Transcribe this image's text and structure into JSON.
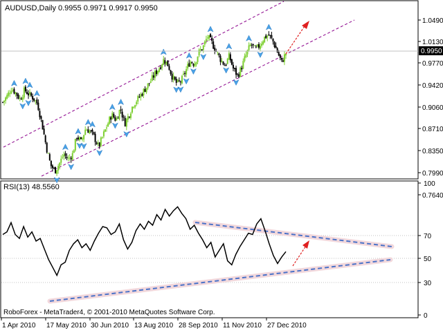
{
  "price_panel": {
    "symbol_line": "AUDUSD,Daily  0.9955 0.9971 0.9917 0.9950",
    "y_ticks": [
      "1.0490",
      "1.0130",
      "0.9770",
      "0.9420",
      "0.9060",
      "0.8710",
      "0.8350",
      "0.7990",
      "0.7640"
    ],
    "current_price": "0.9950"
  },
  "rsi_panel": {
    "title": "RSI(13) 48.5560",
    "y_ticks": [
      "100",
      "70",
      "50",
      "30",
      "0"
    ]
  },
  "footer_copyright": "RoboForex - MetaTrader4, © 2001-2010 MetaQuotes Software Corp.",
  "x_axis": {
    "ticks": [
      "1 Apr 2010",
      "17 May 2010",
      "30 Jun 2010",
      "13 Aug 2010",
      "28 Sep 2010",
      "11 Nov 2010",
      "27 Dec 2010"
    ]
  },
  "colors": {
    "up_candle": "#7dcf30",
    "down_candle": "#000000",
    "fractal": "#4aa3e8",
    "channel": "#8b008b",
    "rsi_line": "#000000",
    "rsi_trend": "#4a72c8",
    "rsi_trend_halo": "#f2d8dc",
    "arrow": "#e02020"
  },
  "chart_data": [
    {
      "type": "candlestick",
      "title": "AUDUSD,Daily",
      "ylim": [
        0.764,
        1.049
      ],
      "price_series": [
        0.915,
        0.925,
        0.938,
        0.93,
        0.92,
        0.935,
        0.928,
        0.922,
        0.912,
        0.88,
        0.842,
        0.812,
        0.803,
        0.815,
        0.83,
        0.822,
        0.83,
        0.86,
        0.85,
        0.872,
        0.868,
        0.858,
        0.842,
        0.86,
        0.878,
        0.895,
        0.886,
        0.905,
        0.88,
        0.895,
        0.912,
        0.92,
        0.93,
        0.94,
        0.95,
        0.962,
        0.972,
        0.985,
        0.975,
        0.955,
        0.945,
        0.95,
        0.966,
        0.982,
        0.978,
        0.996,
        1.005,
        1.022,
        1.012,
        0.998,
        0.985,
        0.975,
        0.99,
        0.968,
        0.958,
        0.975,
        0.995,
        1.01,
        1.0,
        1.008,
        1.02,
        1.025,
        1.015,
        0.998,
        0.98,
        0.995
      ],
      "current": 0.995
    },
    {
      "type": "line",
      "title": "RSI(13) 48.5560",
      "ylim": [
        0,
        100
      ],
      "y_ticks": [
        100,
        70,
        50,
        30,
        0
      ],
      "x_ticks": [
        "1 Apr 2010",
        "17 May 2010",
        "30 Jun 2010",
        "13 Aug 2010",
        "28 Sep 2010",
        "11 Nov 2010",
        "27 Dec 2010"
      ],
      "series": [
        {
          "values": [
            61,
            63,
            70,
            61,
            58,
            67,
            59,
            63,
            56,
            58,
            50,
            42,
            36,
            30,
            38,
            40,
            49,
            54,
            57,
            51,
            54,
            49,
            56,
            62,
            67,
            66,
            61,
            63,
            69,
            57,
            50,
            55,
            64,
            69,
            65,
            71,
            68,
            76,
            72,
            80,
            75,
            79,
            82,
            77,
            73,
            65,
            68,
            62,
            57,
            51,
            55,
            44,
            49,
            54,
            41,
            38,
            46,
            52,
            57,
            62,
            61,
            69,
            73,
            64,
            54,
            45,
            39,
            44,
            48
          ]
        }
      ]
    }
  ]
}
